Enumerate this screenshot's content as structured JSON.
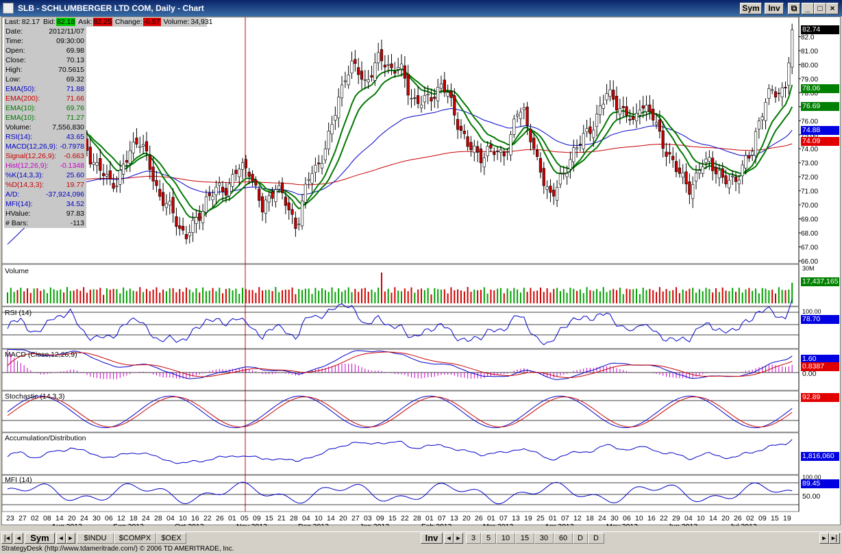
{
  "window": {
    "title": "SLB - SCHLUMBERGER LTD COM, Daily - Chart",
    "sym_btn": "Sym",
    "inv_btn": "Inv"
  },
  "quote": {
    "last_label": "Last:",
    "last": "82.17",
    "bid_label": "Bid:",
    "bid": "82.18",
    "ask_label": "Ask:",
    "ask": "82.25",
    "change_label": "Change:",
    "change": "-0.57",
    "volume_label": "Volume:",
    "volume": "34,931"
  },
  "datapanel": [
    {
      "label": "Date:",
      "value": "2012/11/07",
      "color": "#000000"
    },
    {
      "label": "Time:",
      "value": "09:30:00",
      "color": "#000000"
    },
    {
      "label": "Open:",
      "value": "69.98",
      "color": "#000000"
    },
    {
      "label": "Close:",
      "value": "70.13",
      "color": "#000000"
    },
    {
      "label": "High:",
      "value": "70.5615",
      "color": "#000000"
    },
    {
      "label": "Low:",
      "value": "69.32",
      "color": "#000000"
    },
    {
      "label": "EMA(50):",
      "value": "71.88",
      "color": "#0000c8"
    },
    {
      "label": "EMA(200):",
      "value": "71.66",
      "color": "#c80000"
    },
    {
      "label": "EMA(10):",
      "value": "69.76",
      "color": "#007800"
    },
    {
      "label": "EMA(10):",
      "value": "71.27",
      "color": "#007800"
    },
    {
      "label": "Volume:",
      "value": "7,556,830",
      "color": "#000000"
    },
    {
      "label": "RSI(14):",
      "value": "43.65",
      "color": "#0000c8"
    },
    {
      "label": "MACD(12,26,9):",
      "value": "-0.7978",
      "color": "#0000c8"
    },
    {
      "label": "Signal(12,26,9):",
      "value": "-0.663",
      "color": "#c80000"
    },
    {
      "label": "Hist(12,26,9):",
      "value": "-0.1348",
      "color": "#c800c8"
    },
    {
      "label": "%K(14,3,3):",
      "value": "25.60",
      "color": "#0000c8"
    },
    {
      "label": "%D(14,3,3):",
      "value": "19.77",
      "color": "#c80000"
    },
    {
      "label": "A/D:",
      "value": "-37,924,096",
      "color": "#0000c8"
    },
    {
      "label": "MFI(14):",
      "value": "34.52",
      "color": "#0000c8"
    },
    {
      "label": "HValue:",
      "value": "97.83",
      "color": "#000000"
    },
    {
      "label": "# Bars:",
      "value": "-113",
      "color": "#000000"
    }
  ],
  "panels": {
    "volume": "Volume",
    "rsi": "RSI (14)",
    "macd": "MACD (Close,12,26,9)",
    "stochastic": "Stochastic (14,3,3)",
    "ad": "Accumulation/Distribution",
    "mfi": "MFI (14)"
  },
  "price_axis": [
    "82.0",
    "81.00",
    "80.00",
    "79.00",
    "78.00",
    "77.00",
    "76.00",
    "75.00",
    "74.00",
    "73.00",
    "72.00",
    "71.00",
    "70.00",
    "69.00",
    "68.00",
    "67.00",
    "66.00"
  ],
  "right_labels": {
    "last": "82.74",
    "ema10a": "78.06",
    "ema10b": "76.69",
    "ema50": "74.88",
    "ema200": "74.09",
    "volume_top": "30M",
    "volume_value": "17,437,165",
    "rsi_top": "100.00",
    "rsi_value": "78.70",
    "macd_value": "1.60",
    "macd_signal": "0.8387",
    "macd_zero": "0.00",
    "stoch_value": "92.89",
    "ad_value": "1,816,060",
    "mfi_top": "100.00",
    "mfi_value": "89.45",
    "mfi_mid": "50.00"
  },
  "x_days": [
    "23",
    "27",
    "02",
    "08",
    "14",
    "20",
    "24",
    "30",
    "06",
    "12",
    "18",
    "24",
    "28",
    "04",
    "10",
    "16",
    "22",
    "26",
    "01",
    "05",
    "09",
    "15",
    "21",
    "28",
    "04",
    "10",
    "14",
    "20",
    "27",
    "03",
    "09",
    "15",
    "22",
    "28",
    "01",
    "07",
    "13",
    "20",
    "26",
    "01",
    "07",
    "13",
    "19",
    "25",
    "01",
    "07",
    "12",
    "18",
    "24",
    "30",
    "06",
    "10",
    "16",
    "22",
    "29",
    "04",
    "10",
    "14",
    "20",
    "26",
    "02",
    "09",
    "15",
    "19"
  ],
  "x_months": [
    {
      "label": "Aug 2012",
      "col": 4
    },
    {
      "label": "Sep 2012",
      "col": 9
    },
    {
      "label": "Oct 2012",
      "col": 14
    },
    {
      "label": "Nov 2012",
      "col": 19
    },
    {
      "label": "Dec 2012",
      "col": 24
    },
    {
      "label": "Jan 2013",
      "col": 29
    },
    {
      "label": "Feb 2013",
      "col": 34
    },
    {
      "label": "Mar 2013",
      "col": 39
    },
    {
      "label": "Apr 2013",
      "col": 44
    },
    {
      "label": "May 2013",
      "col": 49
    },
    {
      "label": "Jun 2013",
      "col": 54
    },
    {
      "label": "Jul 2013",
      "col": 59
    }
  ],
  "bottombar": {
    "sym": "Sym",
    "inv": "Inv",
    "symbols": [
      "$INDU",
      "$COMPX",
      "$OEX"
    ],
    "periods": [
      "3",
      "5",
      "10",
      "15",
      "30",
      "60",
      "D",
      "D"
    ]
  },
  "status": "StrategyDesk (http://www.tdameritrade.com/) © 2006 TD AMERITRADE, Inc.",
  "chart_data": {
    "type": "candlestick",
    "title": "SLB - SCHLUMBERGER LTD COM, Daily - Chart",
    "ylim": [
      66,
      83
    ],
    "close_path": [
      71.5,
      73.5,
      74.2,
      72.3,
      71.5,
      72.5,
      73.5,
      74.5,
      75.5,
      77.6,
      76.2,
      74.8,
      73.5,
      72.5,
      72.2,
      71.8,
      71.5,
      72.8,
      74.2,
      74.8,
      73.6,
      72.2,
      70.8,
      70.0,
      69.4,
      68.4,
      67.8,
      68.4,
      69.4,
      70.6,
      70.8,
      71.2,
      71.2,
      72.3,
      72.5,
      72.8,
      71.2,
      69.5,
      70.5,
      71.5,
      70.5,
      69.4,
      68.5,
      70.5,
      72.2,
      72.8,
      73.8,
      75.2,
      77.5,
      79.2,
      79.8,
      79.5,
      78.8,
      79.5,
      80.4,
      80.2,
      79.6,
      79.8,
      78.5,
      77.5,
      77.2,
      77.5,
      78.0,
      78.5,
      77.8,
      76.5,
      75.2,
      74.0,
      73.8,
      73.5,
      73.9,
      73.6,
      73.8,
      74.5,
      76.5,
      76.8,
      75.0,
      72.8,
      71.5,
      70.8,
      71.5,
      72.0,
      73.8,
      74.5,
      74.8,
      75.5,
      77.0,
      77.8,
      77.5,
      77.0,
      76.5,
      75.5,
      77.5,
      76.8,
      76.0,
      74.5,
      73.8,
      72.5,
      72.0,
      71.3,
      71.8,
      72.8,
      73.3,
      72.5,
      71.5,
      71.8,
      72.0,
      72.8,
      73.5,
      75.8,
      77.2,
      78.0,
      78.0,
      78.5,
      82.0
    ],
    "series": [
      {
        "name": "EMA(10)",
        "color": "#007800"
      },
      {
        "name": "EMA(10)",
        "color": "#007800"
      },
      {
        "name": "EMA(50)",
        "color": "#0000c8"
      },
      {
        "name": "EMA(200)",
        "color": "#c80000"
      }
    ]
  }
}
